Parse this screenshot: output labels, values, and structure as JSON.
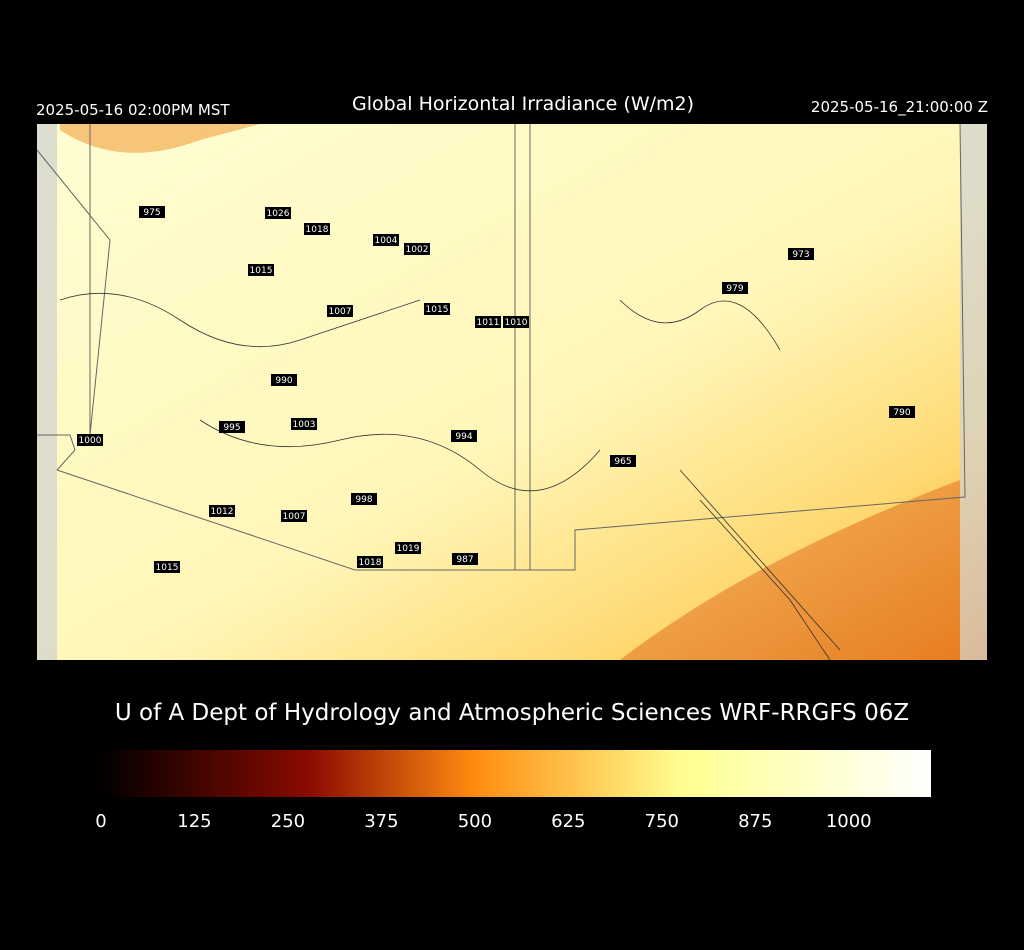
{
  "header": {
    "left": "2025-05-16 02:00PM MST",
    "title": "Global Horizontal Irradiance (W/m2)",
    "right": "2025-05-16_21:00:00 Z"
  },
  "map": {
    "stations": [
      975,
      1026,
      1018,
      1004,
      1002,
      1015,
      1007,
      1015,
      1011,
      1010,
      990,
      995,
      1003,
      994,
      965,
      973,
      979,
      790,
      1000,
      1012,
      1007,
      998,
      1019,
      1018,
      987,
      1015
    ]
  },
  "footer": {
    "credit": "U of A Dept of Hydrology and Atmospheric Sciences WRF-RRGFS 06Z"
  },
  "colorbar": {
    "range": [
      0,
      1110
    ],
    "ticks": [
      0,
      125,
      250,
      375,
      500,
      625,
      750,
      875,
      1000
    ]
  }
}
